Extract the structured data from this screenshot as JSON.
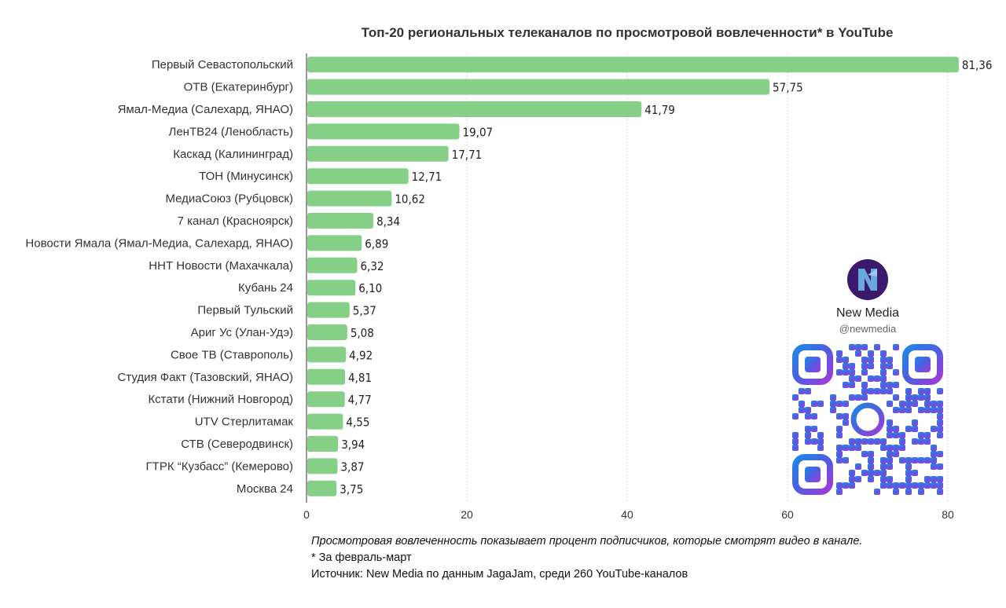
{
  "chart_data": {
    "type": "bar",
    "orientation": "horizontal",
    "title": "Топ-20 региональных телеканалов по просмотровой вовлеченности* в YouTube",
    "categories": [
      "Первый Севастопольский",
      "ОТВ (Екатеринбург)",
      "Ямал-Медиа (Салехард, ЯНАО)",
      "ЛенТВ24 (Ленобласть)",
      "Каскад (Калининград)",
      "ТОН (Минусинск)",
      "МедиаСоюз (Рубцовск)",
      "7 канал (Красноярск)",
      "Новости Ямала (Ямал-Медиа, Салехард, ЯНАО)",
      "ННТ Новости (Махачкала)",
      "Кубань 24",
      "Первый Тульский",
      "Ариг Ус (Улан-Удэ)",
      "Свое ТВ (Ставрополь)",
      "Студия Факт (Тазовский, ЯНАО)",
      "Кстати (Нижний Новгород)",
      "UTV Стерлитамак",
      "СТВ (Северодвинск)",
      "ГТРК “Кузбасс” (Кемерово)",
      "Москва 24"
    ],
    "values": [
      81.36,
      57.75,
      41.79,
      19.07,
      17.71,
      12.71,
      10.62,
      8.34,
      6.89,
      6.32,
      6.1,
      5.37,
      5.08,
      4.92,
      4.81,
      4.77,
      4.55,
      3.94,
      3.87,
      3.75
    ],
    "value_labels": [
      "81,36",
      "57,75",
      "41,79",
      "19,07",
      "17,71",
      "12,71",
      "10,62",
      "8,34",
      "6,89",
      "6,32",
      "6,10",
      "5,37",
      "5,08",
      "4,92",
      "4,81",
      "4,77",
      "4,55",
      "3,94",
      "3,87",
      "3,75"
    ],
    "xlim": [
      0,
      80
    ],
    "xticks": [
      0,
      20,
      40,
      60,
      80
    ],
    "grid": true,
    "bar_color": "#86cf86"
  },
  "notes": {
    "line1": "Просмотровая вовлеченность показывает процент подписчиков, которые смотрят видео в канале.",
    "line2": "* За февраль-март",
    "line3": "Источник: New Media по данным JagaJam, среди 260 YouTube-каналов"
  },
  "brand": {
    "name": "New Media",
    "handle": "@newmedia",
    "logo_icon": "new-media-logo-icon",
    "qr_icon": "qr-code-icon"
  }
}
